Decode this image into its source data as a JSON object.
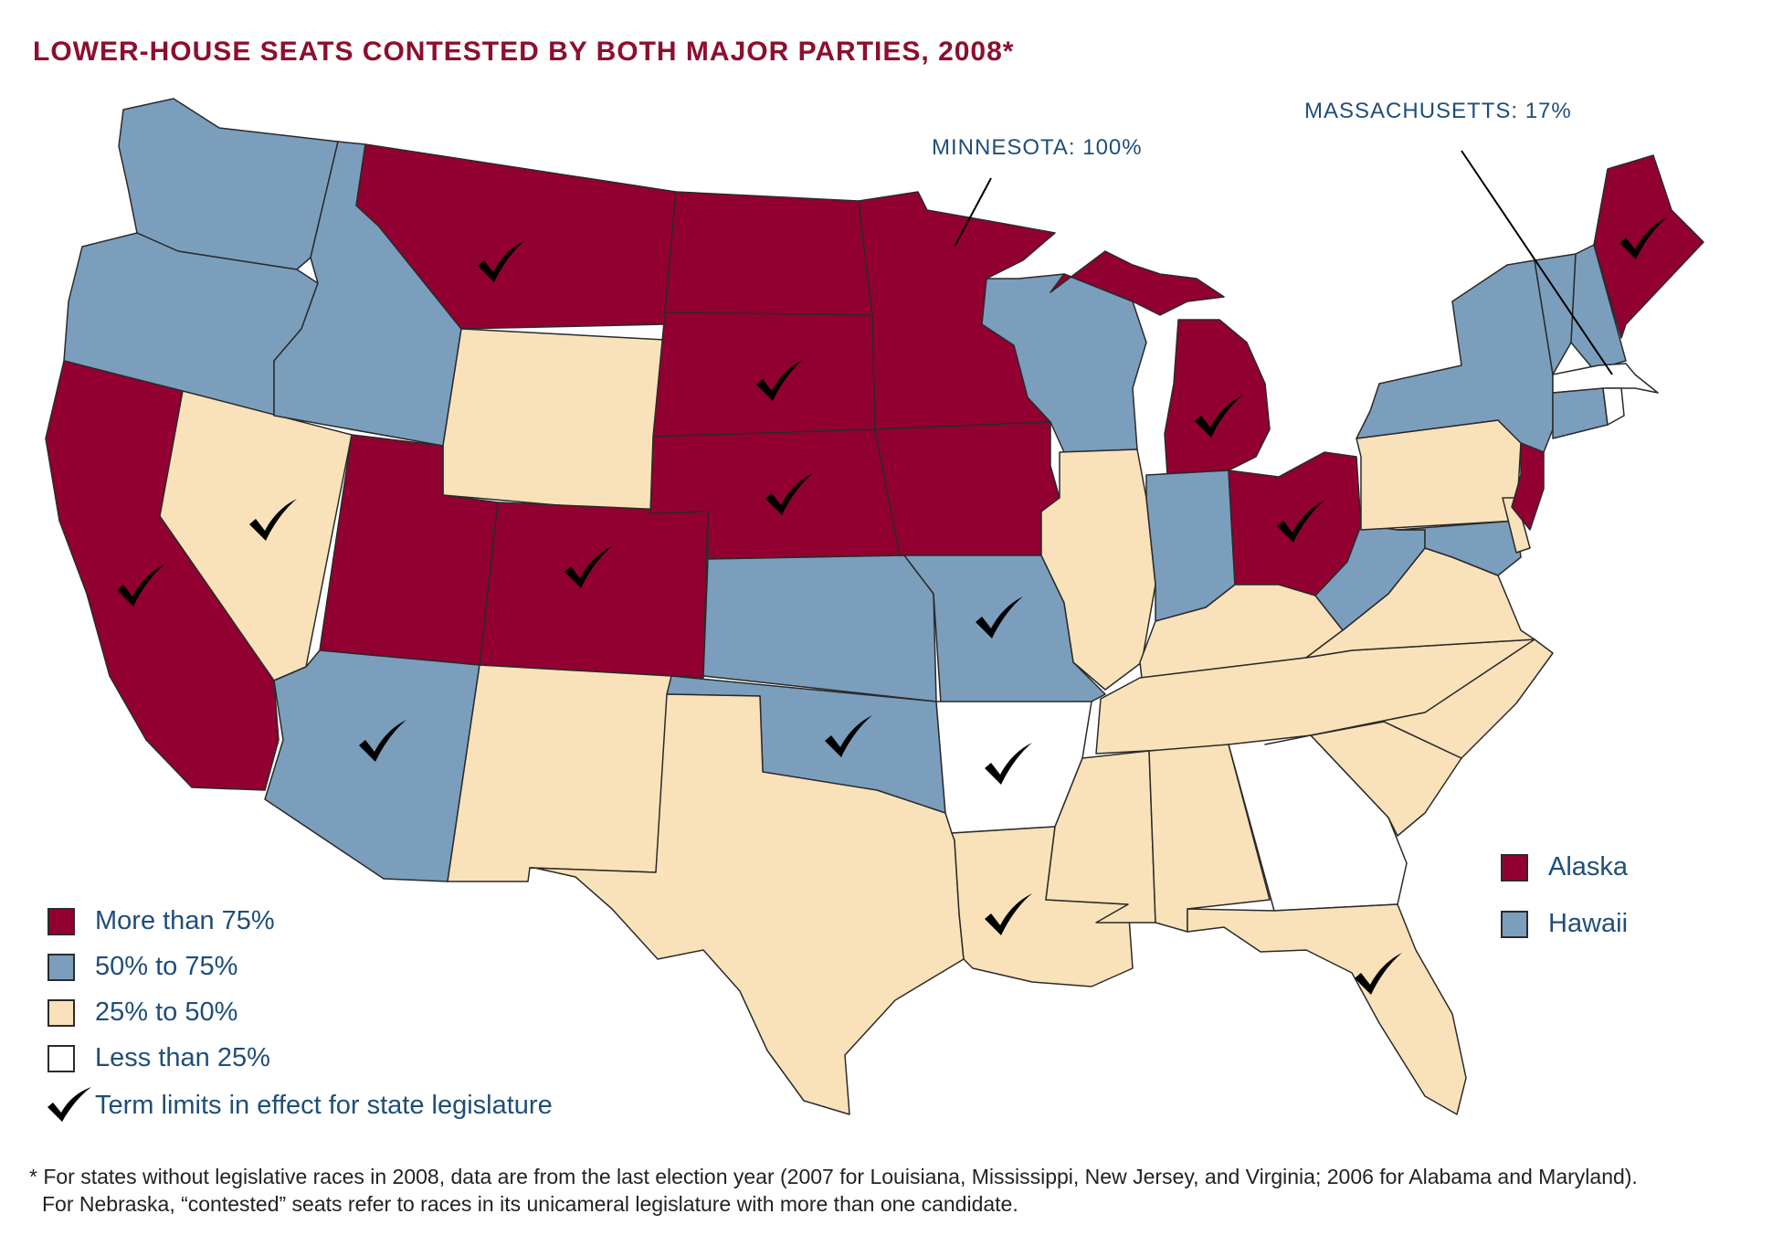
{
  "title": "LOWER-HOUSE SEATS CONTESTED BY BOTH MAJOR PARTIES, 2008*",
  "callouts": {
    "minnesota": "MINNESOTA: 100%",
    "massachusetts": "MASSACHUSETTS: 17%"
  },
  "colors": {
    "more_than_75": "#920031",
    "p50_to_75": "#7b9ebd",
    "p25_to_50": "#f9e2b9",
    "less_than_25": "#ffffff",
    "border": "#2a2a2a",
    "title": "#8c0f2e",
    "text": "#1f4e79"
  },
  "legend": [
    {
      "label": "More than 75%",
      "color": "#920031"
    },
    {
      "label": "50% to 75%",
      "color": "#7b9ebd"
    },
    {
      "label": "25% to 50%",
      "color": "#f9e2b9"
    },
    {
      "label": "Less than 25%",
      "color": "#ffffff"
    },
    {
      "label": "Term limits in effect for state legislature",
      "icon": "checkmark-icon"
    }
  ],
  "insets": [
    {
      "label": "Alaska",
      "color": "#920031"
    },
    {
      "label": "Hawaii",
      "color": "#7b9ebd"
    }
  ],
  "states": {
    "WA": {
      "category": "50-75",
      "term_limits": false
    },
    "OR": {
      "category": "50-75",
      "term_limits": false
    },
    "CA": {
      "category": ">75",
      "term_limits": true
    },
    "NV": {
      "category": "25-50",
      "term_limits": true
    },
    "ID": {
      "category": "50-75",
      "term_limits": false
    },
    "MT": {
      "category": ">75",
      "term_limits": true
    },
    "WY": {
      "category": "25-50",
      "term_limits": false
    },
    "UT": {
      "category": ">75",
      "term_limits": false
    },
    "AZ": {
      "category": "50-75",
      "term_limits": true
    },
    "CO": {
      "category": ">75",
      "term_limits": true
    },
    "NM": {
      "category": "25-50",
      "term_limits": false
    },
    "ND": {
      "category": ">75",
      "term_limits": false
    },
    "SD": {
      "category": ">75",
      "term_limits": true
    },
    "NE": {
      "category": ">75",
      "term_limits": true
    },
    "KS": {
      "category": "50-75",
      "term_limits": false
    },
    "OK": {
      "category": "50-75",
      "term_limits": true
    },
    "TX": {
      "category": "25-50",
      "term_limits": false
    },
    "MN": {
      "category": ">75",
      "term_limits": false
    },
    "IA": {
      "category": ">75",
      "term_limits": false
    },
    "MO": {
      "category": "50-75",
      "term_limits": true
    },
    "AR": {
      "category": "<25",
      "term_limits": true
    },
    "LA": {
      "category": "25-50",
      "term_limits": true
    },
    "WI": {
      "category": "50-75",
      "term_limits": false
    },
    "IL": {
      "category": "25-50",
      "term_limits": false
    },
    "MI": {
      "category": ">75",
      "term_limits": true
    },
    "IN": {
      "category": "50-75",
      "term_limits": false
    },
    "OH": {
      "category": ">75",
      "term_limits": true
    },
    "KY": {
      "category": "25-50",
      "term_limits": false
    },
    "TN": {
      "category": "25-50",
      "term_limits": false
    },
    "MS": {
      "category": "25-50",
      "term_limits": false
    },
    "AL": {
      "category": "25-50",
      "term_limits": false
    },
    "GA": {
      "category": "<25",
      "term_limits": false
    },
    "FL": {
      "category": "25-50",
      "term_limits": true
    },
    "SC": {
      "category": "25-50",
      "term_limits": false
    },
    "NC": {
      "category": "25-50",
      "term_limits": false
    },
    "VA": {
      "category": "25-50",
      "term_limits": false
    },
    "WV": {
      "category": "50-75",
      "term_limits": false
    },
    "PA": {
      "category": "25-50",
      "term_limits": false
    },
    "NY": {
      "category": "50-75",
      "term_limits": false
    },
    "VT": {
      "category": "50-75",
      "term_limits": false
    },
    "NH": {
      "category": "50-75",
      "term_limits": false
    },
    "ME": {
      "category": ">75",
      "term_limits": true
    },
    "MA": {
      "category": "<25",
      "term_limits": false
    },
    "CT": {
      "category": "50-75",
      "term_limits": false
    },
    "RI": {
      "category": "<25",
      "term_limits": false
    },
    "NJ": {
      "category": ">75",
      "term_limits": false
    },
    "DE": {
      "category": "25-50",
      "term_limits": false
    },
    "MD": {
      "category": "50-75",
      "term_limits": false
    },
    "AK": {
      "category": ">75",
      "term_limits": false
    },
    "HI": {
      "category": "50-75",
      "term_limits": false
    }
  },
  "footnote": {
    "line1": "* For states without legislative races in 2008, data are from the last election year (2007 for Louisiana, Mississippi, New Jersey, and Virginia; 2006 for Alabama and Maryland).",
    "line2": "For Nebraska, “contested” seats refer to races in its unicameral legislature with more than one candidate."
  }
}
